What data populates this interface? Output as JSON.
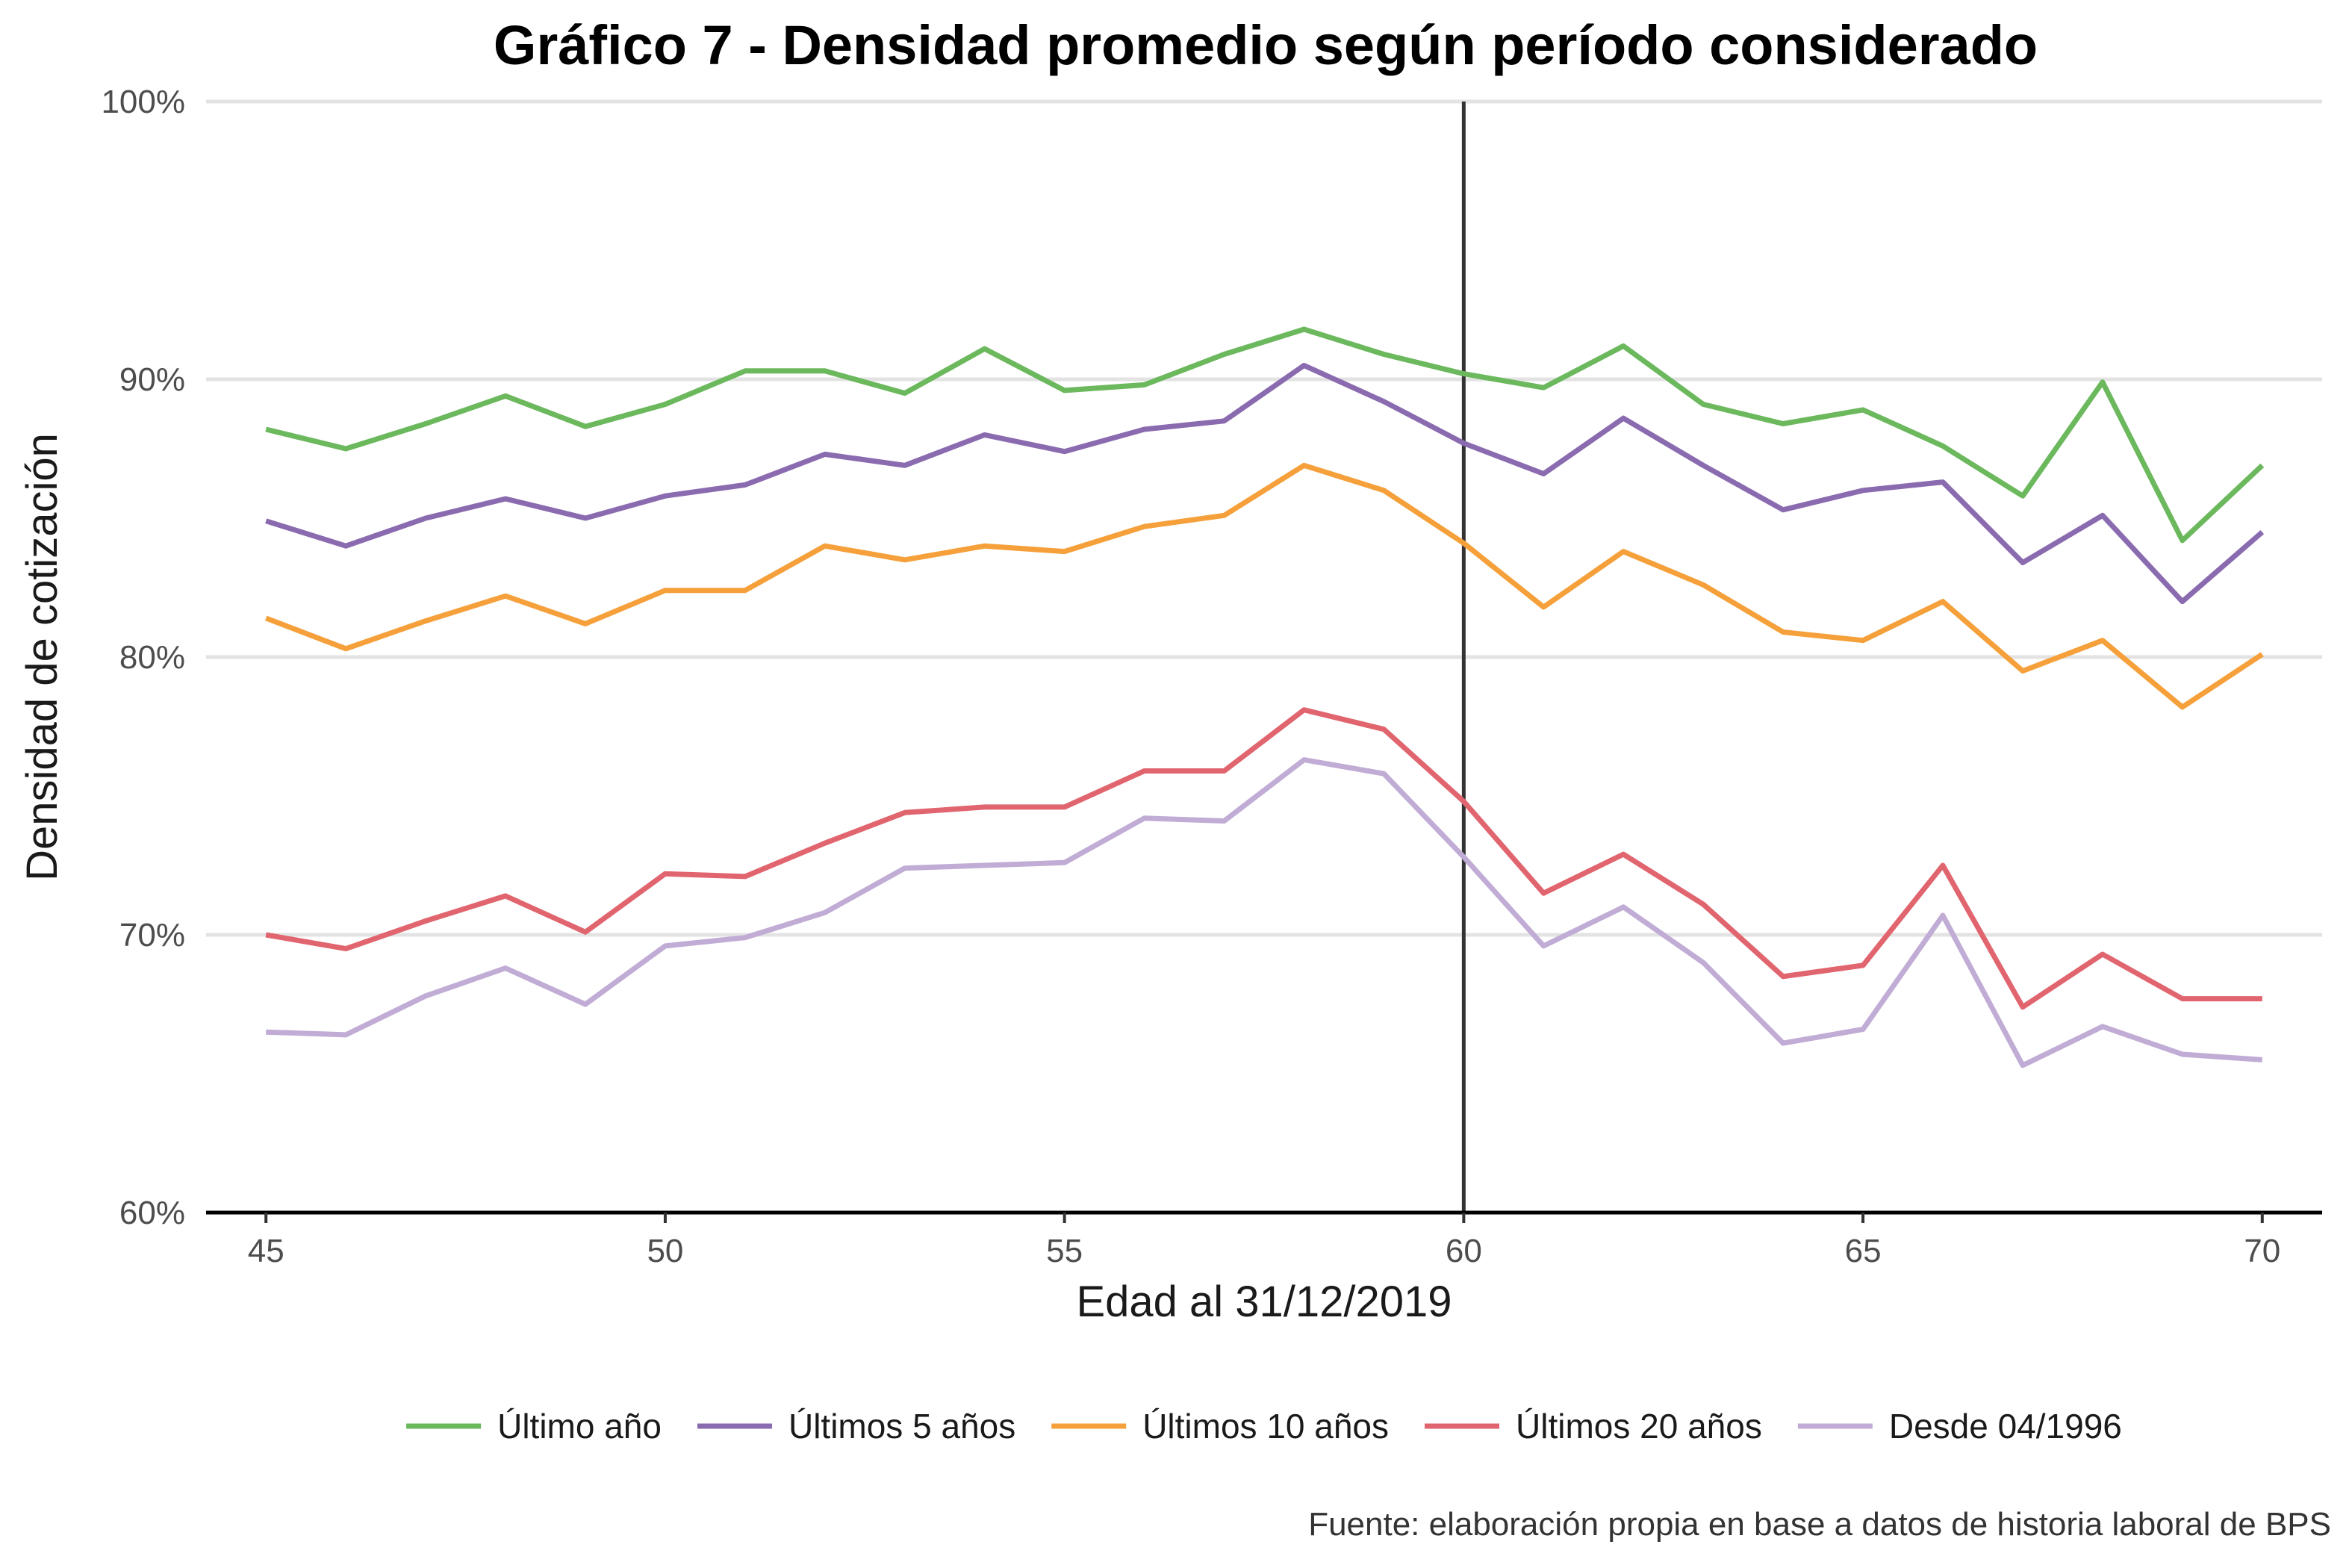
{
  "chart_data": {
    "type": "line",
    "title": "Gráfico 7 - Densidad promedio según período considerado",
    "xlabel": "Edad al 31/12/2019",
    "ylabel": "Densidad de cotización",
    "caption": "Fuente: elaboración propia en base a datos de historia laboral de BPS",
    "xlim": [
      44.25,
      70.75
    ],
    "ylim": [
      60,
      100
    ],
    "x_ticks": [
      45,
      50,
      55,
      60,
      65,
      70
    ],
    "x_tick_labels": [
      "45",
      "50",
      "55",
      "60",
      "65",
      "70"
    ],
    "y_ticks": [
      60,
      70,
      80,
      90,
      100
    ],
    "y_tick_labels": [
      "60%",
      "70%",
      "80%",
      "90%",
      "100%"
    ],
    "vertical_reference_line": 60,
    "grid": "horizontal major lines",
    "legend_position": "bottom",
    "x": [
      45,
      46,
      47,
      48,
      49,
      50,
      51,
      52,
      53,
      54,
      55,
      56,
      57,
      58,
      59,
      60,
      61,
      62,
      63,
      64,
      65,
      66,
      67,
      68,
      69,
      70
    ],
    "series": [
      {
        "name": "Último año",
        "color": "#6bb85d",
        "values": [
          88.2,
          87.5,
          88.4,
          89.4,
          88.3,
          89.1,
          90.3,
          90.3,
          89.5,
          91.1,
          89.6,
          89.8,
          90.9,
          91.8,
          90.9,
          90.2,
          89.7,
          91.2,
          89.1,
          88.4,
          88.9,
          87.6,
          85.8,
          89.9,
          84.2,
          86.9
        ]
      },
      {
        "name": "Últimos 5 años",
        "color": "#8b6bb0",
        "values": [
          84.9,
          84.0,
          85.0,
          85.7,
          85.0,
          85.8,
          86.2,
          87.3,
          86.9,
          88.0,
          87.4,
          88.2,
          88.5,
          90.5,
          89.2,
          87.7,
          86.6,
          88.6,
          86.9,
          85.3,
          86.0,
          86.3,
          83.4,
          85.1,
          82.0,
          84.5
        ]
      },
      {
        "name": "Últimos 10 años",
        "color": "#f5a03a",
        "values": [
          81.4,
          80.3,
          81.3,
          82.2,
          81.2,
          82.4,
          82.4,
          84.0,
          83.5,
          84.0,
          83.8,
          84.7,
          85.1,
          86.9,
          86.0,
          84.1,
          81.8,
          83.8,
          82.6,
          80.9,
          80.6,
          82.0,
          79.5,
          80.6,
          78.2,
          80.1
        ]
      },
      {
        "name": "Últimos 20 años",
        "color": "#e1656f",
        "values": [
          70.0,
          69.5,
          70.5,
          71.4,
          70.1,
          72.2,
          72.1,
          73.3,
          74.4,
          74.6,
          74.6,
          75.9,
          75.9,
          78.1,
          77.4,
          74.8,
          71.5,
          72.9,
          71.1,
          68.5,
          68.9,
          72.5,
          67.4,
          69.3,
          67.7,
          67.7
        ]
      },
      {
        "name": "Desde 04/1996",
        "color": "#c1acd5",
        "values": [
          66.5,
          66.4,
          67.8,
          68.8,
          67.5,
          69.6,
          69.9,
          70.8,
          72.4,
          72.5,
          72.6,
          74.2,
          74.1,
          76.3,
          75.8,
          72.8,
          69.6,
          71.0,
          69.0,
          66.1,
          66.6,
          70.7,
          65.3,
          66.7,
          65.7,
          65.5
        ]
      }
    ]
  }
}
